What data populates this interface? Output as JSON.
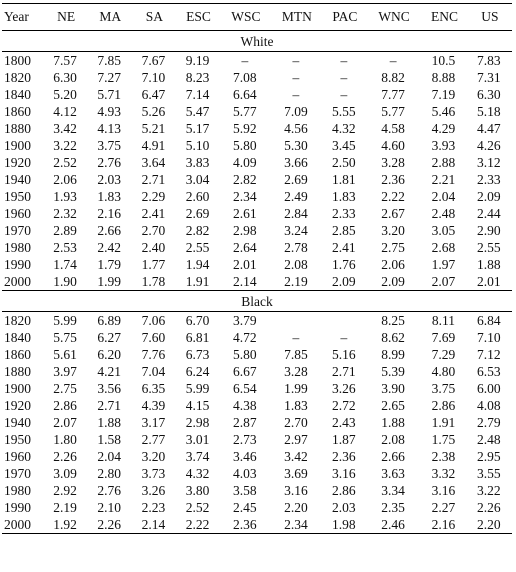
{
  "columns": [
    "Year",
    "NE",
    "MA",
    "SA",
    "ESC",
    "WSC",
    "MTN",
    "PAC",
    "WNC",
    "ENC",
    "US"
  ],
  "sections": [
    {
      "title": "White",
      "rows": [
        [
          "1800",
          "7.57",
          "7.85",
          "7.67",
          "9.19",
          "–",
          "–",
          "–",
          "–",
          "10.5",
          "7.83"
        ],
        [
          "1820",
          "6.30",
          "7.27",
          "7.10",
          "8.23",
          "7.08",
          "–",
          "–",
          "8.82",
          "8.88",
          "7.31"
        ],
        [
          "1840",
          "5.20",
          "5.71",
          "6.47",
          "7.14",
          "6.64",
          "–",
          "–",
          "7.77",
          "7.19",
          "6.30"
        ],
        [
          "1860",
          "4.12",
          "4.93",
          "5.26",
          "5.47",
          "5.77",
          "7.09",
          "5.55",
          "5.77",
          "5.46",
          "5.18"
        ],
        [
          "1880",
          "3.42",
          "4.13",
          "5.21",
          "5.17",
          "5.92",
          "4.56",
          "4.32",
          "4.58",
          "4.29",
          "4.47"
        ],
        [
          "1900",
          "3.22",
          "3.75",
          "4.91",
          "5.10",
          "5.80",
          "5.30",
          "3.45",
          "4.60",
          "3.93",
          "4.26"
        ],
        [
          "1920",
          "2.52",
          "2.76",
          "3.64",
          "3.83",
          "4.09",
          "3.66",
          "2.50",
          "3.28",
          "2.88",
          "3.12"
        ],
        [
          "1940",
          "2.06",
          "2.03",
          "2.71",
          "3.04",
          "2.82",
          "2.69",
          "1.81",
          "2.36",
          "2.21",
          "2.33"
        ],
        [
          "1950",
          "1.93",
          "1.83",
          "2.29",
          "2.60",
          "2.34",
          "2.49",
          "1.83",
          "2.22",
          "2.04",
          "2.09"
        ],
        [
          "1960",
          "2.32",
          "2.16",
          "2.41",
          "2.69",
          "2.61",
          "2.84",
          "2.33",
          "2.67",
          "2.48",
          "2.44"
        ],
        [
          "1970",
          "2.89",
          "2.66",
          "2.70",
          "2.82",
          "2.98",
          "3.24",
          "2.85",
          "3.20",
          "3.05",
          "2.90"
        ],
        [
          "1980",
          "2.53",
          "2.42",
          "2.40",
          "2.55",
          "2.64",
          "2.78",
          "2.41",
          "2.75",
          "2.68",
          "2.55"
        ],
        [
          "1990",
          "1.74",
          "1.79",
          "1.77",
          "1.94",
          "2.01",
          "2.08",
          "1.76",
          "2.06",
          "1.97",
          "1.88"
        ],
        [
          "2000",
          "1.90",
          "1.99",
          "1.78",
          "1.91",
          "2.14",
          "2.19",
          "2.09",
          "2.09",
          "2.07",
          "2.01"
        ]
      ]
    },
    {
      "title": "Black",
      "rows": [
        [
          "1820",
          "5.99",
          "6.89",
          "7.06",
          "6.70",
          "3.79",
          "",
          "",
          "8.25",
          "8.11",
          "6.84"
        ],
        [
          "1840",
          "5.75",
          "6.27",
          "7.60",
          "6.81",
          "4.72",
          "–",
          "–",
          "8.62",
          "7.69",
          "7.10"
        ],
        [
          "1860",
          "5.61",
          "6.20",
          "7.76",
          "6.73",
          "5.80",
          "7.85",
          "5.16",
          "8.99",
          "7.29",
          "7.12"
        ],
        [
          "1880",
          "3.97",
          "4.21",
          "7.04",
          "6.24",
          "6.67",
          "3.28",
          "2.71",
          "5.39",
          "4.80",
          "6.53"
        ],
        [
          "1900",
          "2.75",
          "3.56",
          "6.35",
          "5.99",
          "6.54",
          "1.99",
          "3.26",
          "3.90",
          "3.75",
          "6.00"
        ],
        [
          "1920",
          "2.86",
          "2.71",
          "4.39",
          "4.15",
          "4.38",
          "1.83",
          "2.72",
          "2.65",
          "2.86",
          "4.08"
        ],
        [
          "1940",
          "2.07",
          "1.88",
          "3.17",
          "2.98",
          "2.87",
          "2.70",
          "2.43",
          "1.88",
          "1.91",
          "2.79"
        ],
        [
          "1950",
          "1.80",
          "1.58",
          "2.77",
          "3.01",
          "2.73",
          "2.97",
          "1.87",
          "2.08",
          "1.75",
          "2.48"
        ],
        [
          "1960",
          "2.26",
          "2.04",
          "3.20",
          "3.74",
          "3.46",
          "3.42",
          "2.36",
          "2.66",
          "2.38",
          "2.95"
        ],
        [
          "1970",
          "3.09",
          "2.80",
          "3.73",
          "4.32",
          "4.03",
          "3.69",
          "3.16",
          "3.63",
          "3.32",
          "3.55"
        ],
        [
          "1980",
          "2.92",
          "2.76",
          "3.26",
          "3.80",
          "3.58",
          "3.16",
          "2.86",
          "3.34",
          "3.16",
          "3.22"
        ],
        [
          "1990",
          "2.19",
          "2.10",
          "2.23",
          "2.52",
          "2.45",
          "2.20",
          "2.03",
          "2.35",
          "2.27",
          "2.26"
        ],
        [
          "2000",
          "1.92",
          "2.26",
          "2.14",
          "2.22",
          "2.36",
          "2.34",
          "1.98",
          "2.46",
          "2.16",
          "2.20"
        ]
      ]
    }
  ]
}
